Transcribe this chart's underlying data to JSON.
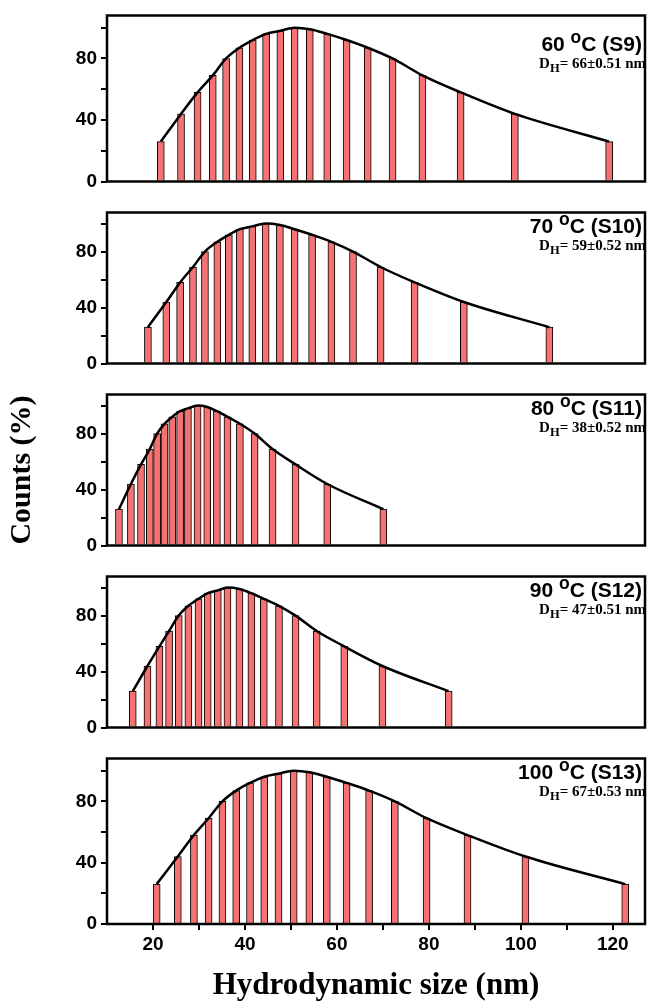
{
  "chart_data": [
    {
      "type": "bar",
      "title": "60 $^{o}$C (S9)",
      "annotations": [
        "D$_{H}$= 66±0.51 nm"
      ],
      "x": [
        21.7,
        26.1,
        29.7,
        33.0,
        35.9,
        38.8,
        41.7,
        44.6,
        47.7,
        50.8,
        54.1,
        57.9,
        62.1,
        66.7,
        72.1,
        78.6,
        86.9,
        98.7,
        119.2
      ],
      "series": [
        {
          "color": "#f47272",
          "values": [
            26,
            44,
            58,
            69,
            80,
            87,
            92,
            96,
            98,
            100,
            99,
            96,
            92,
            87,
            80,
            69,
            58,
            44,
            26
          ]
        },
        {
          "type": "line",
          "color": "#000000",
          "x": [
            21.7,
            26.1,
            29.7,
            33.0,
            35.9,
            38.8,
            41.7,
            44.6,
            47.7,
            50.8,
            54.1,
            57.9,
            62.1,
            66.7,
            72.1,
            78.6,
            86.9,
            98.7,
            119.2
          ],
          "values": [
            26,
            44,
            58,
            69,
            80,
            87,
            92,
            96,
            98,
            100,
            99,
            96,
            92,
            87,
            80,
            69,
            58,
            44,
            26
          ]
        }
      ],
      "xlim": [
        10,
        127
      ],
      "ylim": [
        0,
        108
      ],
      "yticks": [
        0,
        {
          "value": 20,
          "label": null
        },
        40,
        {
          "value": 60,
          "label": null
        },
        80,
        {
          "value": 100,
          "label": null
        }
      ],
      "tick_labels": "y"
    },
    {
      "type": "bar",
      "title": "70 $^{o}$C (S10)",
      "annotations": [
        "D$_{H}$= 59±0.52 nm"
      ],
      "x": [
        18.9,
        22.9,
        25.9,
        28.7,
        31.3,
        34.0,
        36.5,
        38.9,
        41.6,
        44.5,
        47.6,
        50.8,
        54.6,
        58.8,
        63.5,
        69.5,
        76.9,
        87.6,
        106.2
      ],
      "series": [
        {
          "color": "#f47272",
          "values": [
            26,
            44,
            58,
            69,
            80,
            87,
            92,
            96,
            98,
            100,
            99,
            96,
            92,
            87,
            80,
            69,
            58,
            44,
            26
          ]
        },
        {
          "type": "line",
          "color": "#000000",
          "x": [
            18.9,
            22.9,
            25.9,
            28.7,
            31.3,
            34.0,
            36.5,
            38.9,
            41.6,
            44.5,
            47.6,
            50.8,
            54.6,
            58.8,
            63.5,
            69.5,
            76.9,
            87.6,
            106.2
          ],
          "values": [
            26,
            44,
            58,
            69,
            80,
            87,
            92,
            96,
            98,
            100,
            99,
            96,
            92,
            87,
            80,
            69,
            58,
            44,
            26
          ]
        }
      ],
      "xlim": [
        10,
        127
      ],
      "ylim": [
        0,
        108
      ],
      "yticks": [
        0,
        {
          "value": 20,
          "label": null
        },
        40,
        {
          "value": 60,
          "label": null
        },
        80,
        {
          "value": 100,
          "label": null
        }
      ],
      "tick_labels": "y"
    },
    {
      "type": "bar",
      "title": "80 $^{o}$C (S11)",
      "annotations": [
        "D$_{H}$= 38±0.52 nm"
      ],
      "ylabel": "Counts (%)",
      "x": [
        12.6,
        15.2,
        17.4,
        19.3,
        20.9,
        22.5,
        24.2,
        25.9,
        27.6,
        29.7,
        31.8,
        33.9,
        36.2,
        38.9,
        42.1,
        46.0,
        51.0,
        57.9,
        70.1
      ],
      "series": [
        {
          "color": "#f47272",
          "values": [
            26,
            44,
            58,
            69,
            80,
            87,
            92,
            96,
            98,
            100,
            99,
            96,
            92,
            87,
            80,
            69,
            58,
            44,
            26
          ]
        },
        {
          "type": "line",
          "color": "#000000",
          "x": [
            12.6,
            15.2,
            17.4,
            19.3,
            20.9,
            22.5,
            24.2,
            25.9,
            27.6,
            29.7,
            31.8,
            33.9,
            36.2,
            38.9,
            42.1,
            46.0,
            51.0,
            57.9,
            70.1
          ],
          "values": [
            26,
            44,
            58,
            69,
            80,
            87,
            92,
            96,
            98,
            100,
            99,
            96,
            92,
            87,
            80,
            69,
            58,
            44,
            26
          ]
        }
      ],
      "xlim": [
        10,
        127
      ],
      "ylim": [
        0,
        108
      ],
      "yticks": [
        0,
        {
          "value": 20,
          "label": null
        },
        40,
        {
          "value": 60,
          "label": null
        },
        80,
        {
          "value": 100,
          "label": null
        }
      ],
      "tick_labels": "y"
    },
    {
      "type": "bar",
      "title": "90 $^{o}$C (S12)",
      "annotations": [
        "D$_{H}$= 47±0.51 nm"
      ],
      "x": [
        15.6,
        18.8,
        21.4,
        23.5,
        25.6,
        27.7,
        29.9,
        31.9,
        34.1,
        36.2,
        38.8,
        41.4,
        44.1,
        47.4,
        51.0,
        55.6,
        61.6,
        69.9,
        84.3
      ],
      "series": [
        {
          "color": "#f47272",
          "values": [
            26,
            44,
            58,
            69,
            80,
            87,
            92,
            96,
            98,
            100,
            99,
            96,
            92,
            87,
            80,
            69,
            58,
            44,
            26
          ]
        },
        {
          "type": "line",
          "color": "#000000",
          "x": [
            15.6,
            18.8,
            21.4,
            23.5,
            25.6,
            27.7,
            29.9,
            31.9,
            34.1,
            36.2,
            38.8,
            41.4,
            44.1,
            47.4,
            51.0,
            55.6,
            61.6,
            69.9,
            84.3
          ],
          "values": [
            26,
            44,
            58,
            69,
            80,
            87,
            92,
            96,
            98,
            100,
            99,
            96,
            92,
            87,
            80,
            69,
            58,
            44,
            26
          ]
        }
      ],
      "xlim": [
        10,
        127
      ],
      "ylim": [
        0,
        108
      ],
      "yticks": [
        0,
        {
          "value": 20,
          "label": null
        },
        40,
        {
          "value": 60,
          "label": null
        },
        80,
        {
          "value": 100,
          "label": null
        }
      ],
      "tick_labels": "y"
    },
    {
      "type": "bar",
      "title": "100 $^{o}$C (S13)",
      "annotations": [
        "D$_{H}$= 67±0.53 nm"
      ],
      "xlabel": "Hydrodynamic size (nm)",
      "x": [
        20.8,
        25.4,
        28.9,
        32.1,
        35.1,
        38.1,
        41.1,
        44.2,
        47.3,
        50.6,
        54.0,
        57.8,
        62.1,
        67.0,
        72.6,
        79.5,
        88.4,
        101.0,
        122.7
      ],
      "series": [
        {
          "color": "#f47272",
          "values": [
            26,
            44,
            58,
            69,
            80,
            87,
            92,
            96,
            98,
            100,
            99,
            96,
            92,
            87,
            80,
            69,
            58,
            44,
            26
          ]
        },
        {
          "type": "line",
          "color": "#000000",
          "x": [
            20.8,
            25.4,
            28.9,
            32.1,
            35.1,
            38.1,
            41.1,
            44.2,
            47.3,
            50.6,
            54.0,
            57.8,
            62.1,
            67.0,
            72.6,
            79.5,
            88.4,
            101.0,
            122.7
          ],
          "values": [
            26,
            44,
            58,
            69,
            80,
            87,
            92,
            96,
            98,
            100,
            99,
            96,
            92,
            87,
            80,
            69,
            58,
            44,
            26
          ]
        }
      ],
      "xlim": [
        10,
        127
      ],
      "ylim": [
        0,
        108
      ],
      "yticks": [
        0,
        {
          "value": 20,
          "label": null
        },
        40,
        {
          "value": 60,
          "label": null
        },
        80,
        {
          "value": 100,
          "label": null
        }
      ],
      "xticks": [
        20,
        {
          "value": 30,
          "label": null
        },
        40,
        {
          "value": 50,
          "label": null
        },
        60,
        {
          "value": 70,
          "label": null
        },
        80,
        {
          "value": 90,
          "label": null
        },
        100,
        {
          "value": 110,
          "label": null
        },
        120
      ]
    }
  ]
}
